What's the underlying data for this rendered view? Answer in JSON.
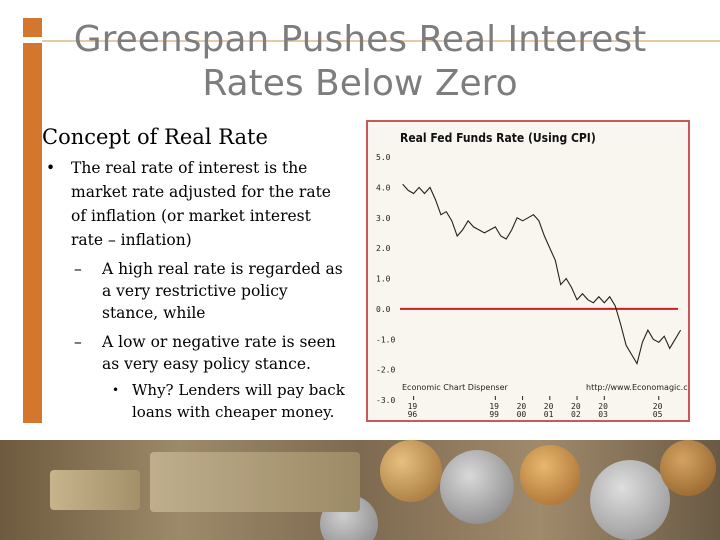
{
  "slide": {
    "title_line1": "Greenspan Pushes Real Interest",
    "title_line2": "Rates Below Zero",
    "concept_heading": "Concept of Real Rate",
    "bullet_dot": "•",
    "dash": "–",
    "bullet_main": "The real rate of interest is the market rate adjusted for the rate of inflation (or market interest rate – inflation)",
    "sub1": "A high real rate is regarded as a very restrictive policy stance, while",
    "sub2": "A low or negative rate is seen as very easy policy stance.",
    "subsub": "Why? Lenders will pay back loans with cheaper money."
  },
  "chart_data": {
    "type": "line",
    "title": "Real Fed Funds Rate (Using CPI)",
    "ylim": [
      -3.0,
      5.0
    ],
    "xlim": [
      1995.5,
      2006.0
    ],
    "yticks": [
      "5.0",
      "4.0",
      "3.0",
      "2.0",
      "1.0",
      "0.0",
      "-1.0",
      "-2.0",
      "-3.0"
    ],
    "ytick_values": [
      5,
      4,
      3,
      2,
      1,
      0,
      -1,
      -2,
      -3
    ],
    "xticks": [
      {
        "top": "19",
        "bottom": "96",
        "value": 1996
      },
      {
        "top": "19",
        "bottom": "99",
        "value": 1999
      },
      {
        "top": "20",
        "bottom": "00",
        "value": 2000
      },
      {
        "top": "20",
        "bottom": "01",
        "value": 2001
      },
      {
        "top": "20",
        "bottom": "02",
        "value": 2002
      },
      {
        "top": "20",
        "bottom": "03",
        "value": 2003
      },
      {
        "top": "20",
        "bottom": "05",
        "value": 2005
      }
    ],
    "reference_line": 0.0,
    "source_left": "Economic Chart Dispenser",
    "source_right": "http://www.Economagic.com/",
    "series_color": "#222222",
    "reference_color": "#cc1f1f",
    "x": [
      1995.6,
      1995.8,
      1996.0,
      1996.2,
      1996.4,
      1996.6,
      1996.8,
      1997.0,
      1997.2,
      1997.4,
      1997.6,
      1997.8,
      1998.0,
      1998.2,
      1998.4,
      1998.6,
      1998.8,
      1999.0,
      1999.2,
      1999.4,
      1999.6,
      1999.8,
      2000.0,
      2000.2,
      2000.4,
      2000.6,
      2000.8,
      2001.0,
      2001.2,
      2001.4,
      2001.6,
      2001.8,
      2002.0,
      2002.2,
      2002.4,
      2002.6,
      2002.8,
      2003.0,
      2003.2,
      2003.4,
      2003.6,
      2003.8,
      2004.0,
      2004.2,
      2004.4,
      2004.6,
      2004.8,
      2005.0,
      2005.2,
      2005.4,
      2005.6,
      2005.8
    ],
    "values": [
      4.1,
      3.9,
      3.8,
      4.0,
      3.8,
      4.0,
      3.6,
      3.1,
      3.2,
      2.9,
      2.4,
      2.6,
      2.9,
      2.7,
      2.6,
      2.5,
      2.6,
      2.7,
      2.4,
      2.3,
      2.6,
      3.0,
      2.9,
      3.0,
      3.1,
      2.9,
      2.4,
      2.0,
      1.6,
      0.8,
      1.0,
      0.7,
      0.3,
      0.5,
      0.3,
      0.2,
      0.4,
      0.2,
      0.4,
      0.1,
      -0.5,
      -1.2,
      -1.5,
      -1.8,
      -1.1,
      -0.7,
      -1.0,
      -1.1,
      -0.9,
      -1.3,
      -1.0,
      -0.7
    ]
  }
}
